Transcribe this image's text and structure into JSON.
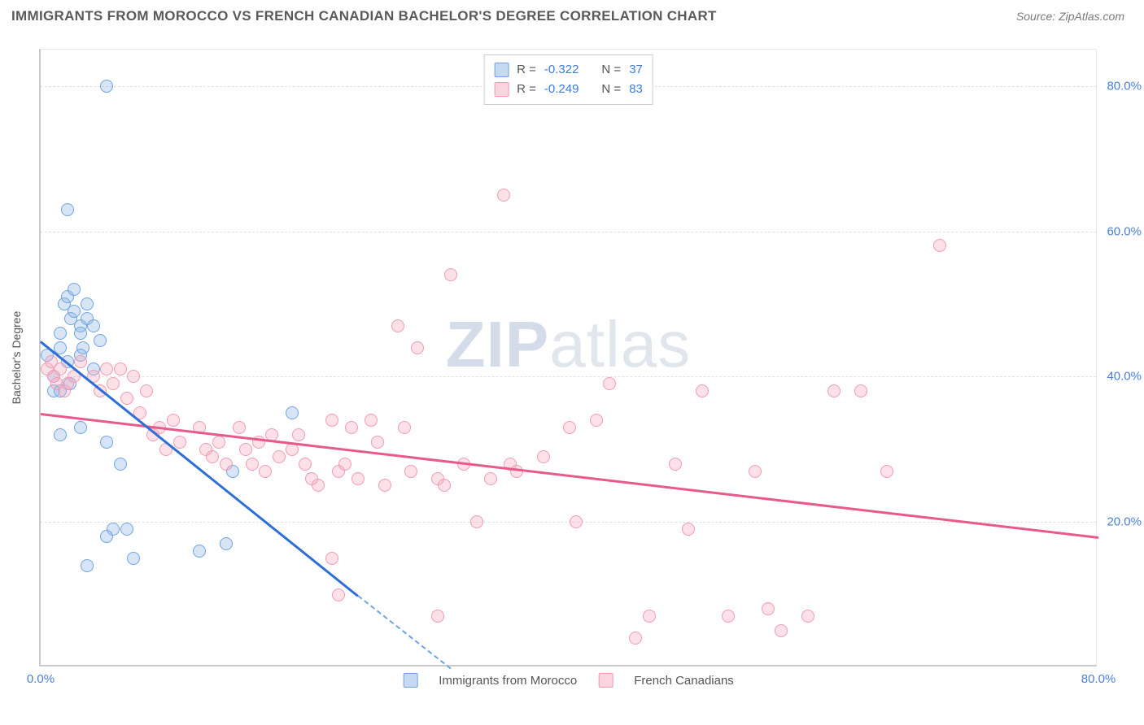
{
  "title": "IMMIGRANTS FROM MOROCCO VS FRENCH CANADIAN BACHELOR'S DEGREE CORRELATION CHART",
  "source": "Source: ZipAtlas.com",
  "ylabel": "Bachelor's Degree",
  "watermark_bold": "ZIP",
  "watermark_rest": "atlas",
  "chart": {
    "type": "scatter",
    "xlim": [
      0,
      80
    ],
    "ylim": [
      0,
      85
    ],
    "xticks": [
      {
        "v": 0,
        "l": "0.0%"
      },
      {
        "v": 80,
        "l": "80.0%"
      }
    ],
    "yticks": [
      {
        "v": 20,
        "l": "20.0%"
      },
      {
        "v": 40,
        "l": "40.0%"
      },
      {
        "v": 60,
        "l": "60.0%"
      },
      {
        "v": 80,
        "l": "80.0%"
      }
    ],
    "grid_color": "#e0e0e0",
    "background_color": "#ffffff",
    "series": [
      {
        "name": "Immigrants from Morocco",
        "color_fill": "rgba(140,180,230,0.35)",
        "color_stroke": "#6fa3e0",
        "trend_color": "#2e6ed8",
        "R": "-0.322",
        "N": "37",
        "trend": {
          "x1": 0,
          "y1": 45,
          "x2": 24,
          "y2": 10
        },
        "trend_ext": {
          "x1": 24,
          "y1": 10,
          "x2": 31,
          "y2": 0
        },
        "points": [
          [
            0.5,
            43
          ],
          [
            1,
            40
          ],
          [
            1,
            38
          ],
          [
            1.5,
            44
          ],
          [
            1.5,
            46
          ],
          [
            1.8,
            50
          ],
          [
            2,
            51
          ],
          [
            2.3,
            48
          ],
          [
            2.5,
            52
          ],
          [
            2.5,
            49
          ],
          [
            3,
            47
          ],
          [
            3,
            46
          ],
          [
            3.2,
            44
          ],
          [
            3.5,
            50
          ],
          [
            3.5,
            48
          ],
          [
            4,
            47
          ],
          [
            4.5,
            45
          ],
          [
            2,
            42
          ],
          [
            3,
            43
          ],
          [
            4,
            41
          ],
          [
            1.5,
            32
          ],
          [
            3,
            33
          ],
          [
            5,
            31
          ],
          [
            5.5,
            19
          ],
          [
            6,
            28
          ],
          [
            6.5,
            19
          ],
          [
            7,
            15
          ],
          [
            3.5,
            14
          ],
          [
            5,
            18
          ],
          [
            2,
            63
          ],
          [
            5,
            80
          ],
          [
            1.5,
            38
          ],
          [
            2.2,
            39
          ],
          [
            19,
            35
          ],
          [
            14.5,
            27
          ],
          [
            14,
            17
          ],
          [
            12,
            16
          ]
        ]
      },
      {
        "name": "French Canadians",
        "color_fill": "rgba(245,170,190,0.35)",
        "color_stroke": "#f09bb0",
        "trend_color": "#e85a8c",
        "R": "-0.249",
        "N": "83",
        "trend": {
          "x1": 0,
          "y1": 35,
          "x2": 80,
          "y2": 18
        },
        "points": [
          [
            0.5,
            41
          ],
          [
            0.8,
            42
          ],
          [
            1,
            40
          ],
          [
            1.2,
            39
          ],
          [
            1.5,
            41
          ],
          [
            1.8,
            38
          ],
          [
            2,
            39
          ],
          [
            2.5,
            40
          ],
          [
            3,
            42
          ],
          [
            4,
            40
          ],
          [
            4.5,
            38
          ],
          [
            5,
            41
          ],
          [
            5.5,
            39
          ],
          [
            6,
            41
          ],
          [
            6.5,
            37
          ],
          [
            7,
            40
          ],
          [
            7.5,
            35
          ],
          [
            8,
            38
          ],
          [
            8.5,
            32
          ],
          [
            9,
            33
          ],
          [
            9.5,
            30
          ],
          [
            10,
            34
          ],
          [
            10.5,
            31
          ],
          [
            12,
            33
          ],
          [
            12.5,
            30
          ],
          [
            13,
            29
          ],
          [
            13.5,
            31
          ],
          [
            14,
            28
          ],
          [
            15,
            33
          ],
          [
            15.5,
            30
          ],
          [
            16,
            28
          ],
          [
            16.5,
            31
          ],
          [
            17,
            27
          ],
          [
            17.5,
            32
          ],
          [
            18,
            29
          ],
          [
            19,
            30
          ],
          [
            19.5,
            32
          ],
          [
            20,
            28
          ],
          [
            20.5,
            26
          ],
          [
            21,
            25
          ],
          [
            22,
            34
          ],
          [
            22.5,
            27
          ],
          [
            23,
            28
          ],
          [
            23.5,
            33
          ],
          [
            24,
            26
          ],
          [
            25,
            34
          ],
          [
            25.5,
            31
          ],
          [
            26,
            25
          ],
          [
            27,
            47
          ],
          [
            27.5,
            33
          ],
          [
            28,
            27
          ],
          [
            28.5,
            44
          ],
          [
            30,
            26
          ],
          [
            30.5,
            25
          ],
          [
            31,
            54
          ],
          [
            32,
            28
          ],
          [
            33,
            20
          ],
          [
            34,
            26
          ],
          [
            35,
            65
          ],
          [
            35.5,
            28
          ],
          [
            36,
            27
          ],
          [
            38,
            29
          ],
          [
            40,
            33
          ],
          [
            40.5,
            20
          ],
          [
            42,
            34
          ],
          [
            43,
            39
          ],
          [
            45,
            4
          ],
          [
            46,
            7
          ],
          [
            48,
            28
          ],
          [
            49,
            19
          ],
          [
            50,
            38
          ],
          [
            52,
            7
          ],
          [
            54,
            27
          ],
          [
            55,
            8
          ],
          [
            56,
            5
          ],
          [
            58,
            7
          ],
          [
            60,
            38
          ],
          [
            62,
            38
          ],
          [
            64,
            27
          ],
          [
            68,
            58
          ],
          [
            22,
            15
          ],
          [
            22.5,
            10
          ],
          [
            30,
            7
          ]
        ]
      }
    ],
    "legend_labels": [
      "Immigrants from Morocco",
      "French Canadians"
    ]
  },
  "stats_labels": {
    "R": "R =",
    "N": "N ="
  }
}
